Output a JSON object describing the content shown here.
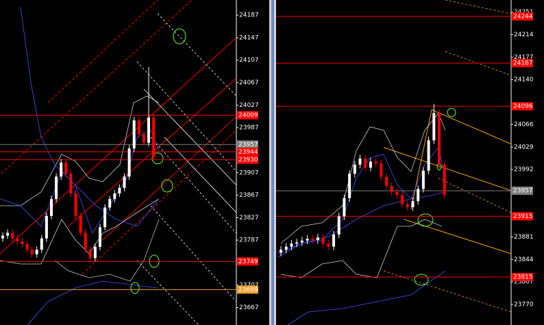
{
  "chart_data": [
    {
      "type": "candlestick",
      "ylim": [
        23636,
        24214
      ],
      "yticks": [
        24187,
        24147,
        24107,
        24067,
        24027,
        23987,
        23907,
        23867,
        23827,
        23787,
        23707,
        23667
      ],
      "up_color": "#ffffff",
      "down_color": "#ff0000",
      "open": [
        23790,
        23795,
        23800,
        23790,
        23785,
        23780,
        23770,
        23762,
        23770,
        23790,
        23830,
        23860,
        23900,
        23925,
        23905,
        23870,
        23830,
        23800,
        23770,
        23755,
        23775,
        23810,
        23845,
        23860,
        23870,
        23880,
        23900,
        23950,
        24000,
        23975,
        23960,
        24005
      ],
      "high": [
        23801,
        23806,
        23806,
        23796,
        23791,
        23786,
        23776,
        23776,
        23796,
        23836,
        23866,
        23906,
        23931,
        23931,
        23911,
        23876,
        23836,
        23806,
        23776,
        23781,
        23816,
        23851,
        23866,
        23876,
        23886,
        23906,
        23956,
        24006,
        24006,
        23981,
        24095,
        24011
      ],
      "low": [
        23784,
        23789,
        23784,
        23779,
        23774,
        23764,
        23756,
        23756,
        23764,
        23784,
        23824,
        23854,
        23894,
        23899,
        23864,
        23824,
        23794,
        23764,
        23749,
        23749,
        23769,
        23804,
        23839,
        23854,
        23864,
        23874,
        23894,
        23944,
        23969,
        23954,
        23954,
        23929
      ],
      "close": [
        23795,
        23800,
        23790,
        23785,
        23780,
        23770,
        23762,
        23770,
        23790,
        23830,
        23860,
        23900,
        23925,
        23905,
        23870,
        23830,
        23800,
        23770,
        23755,
        23775,
        23810,
        23845,
        23860,
        23870,
        23880,
        23900,
        23950,
        24000,
        23975,
        23960,
        24005,
        23935
      ],
      "levels": [
        {
          "value": 24009,
          "color": "#ff0000"
        },
        {
          "value": 23957,
          "color": "#808080"
        },
        {
          "value": 23944,
          "color": "#ff0000"
        },
        {
          "value": 23930,
          "color": "#ff0000"
        },
        {
          "value": 23749,
          "color": "#ff0000"
        },
        {
          "value": 23699,
          "color": "#f0a030"
        }
      ]
    },
    {
      "type": "candlestick",
      "ylim": [
        23736,
        24271
      ],
      "yticks": [
        24251,
        24214,
        24177,
        24140,
        24066,
        24029,
        23992,
        23881,
        23844,
        23807,
        23770
      ],
      "up_color": "#ffffff",
      "down_color": "#ff0000",
      "open": [
        23855,
        23860,
        23865,
        23870,
        23872,
        23875,
        23878,
        23876,
        23880,
        23870,
        23865,
        23885,
        23915,
        23945,
        23985,
        24000,
        24010,
        23995,
        24005,
        24002,
        23980,
        23965,
        23955,
        23950,
        23935,
        23930,
        23940,
        23960,
        23990,
        24040,
        24085,
        24000
      ],
      "high": [
        23866,
        23871,
        23876,
        23878,
        23881,
        23884,
        23884,
        23886,
        23886,
        23876,
        23891,
        23921,
        23951,
        23991,
        24006,
        24016,
        24016,
        24011,
        24011,
        24008,
        23986,
        23971,
        23961,
        23956,
        23941,
        23946,
        23966,
        23996,
        24046,
        24100,
        24091,
        24006
      ],
      "low": [
        23849,
        23854,
        23859,
        23864,
        23866,
        23869,
        23870,
        23870,
        23864,
        23859,
        23859,
        23879,
        23909,
        23939,
        23979,
        23994,
        23989,
        23989,
        23996,
        23974,
        23959,
        23949,
        23944,
        23929,
        23924,
        23924,
        23934,
        23954,
        23984,
        24034,
        23994,
        23944
      ],
      "close": [
        23860,
        23865,
        23870,
        23872,
        23875,
        23878,
        23876,
        23880,
        23870,
        23865,
        23885,
        23915,
        23945,
        23985,
        24000,
        24010,
        23995,
        24005,
        24002,
        23980,
        23965,
        23955,
        23950,
        23935,
        23930,
        23940,
        23960,
        23990,
        24040,
        24085,
        24000,
        23950
      ],
      "levels": [
        {
          "value": 24244,
          "color": "#ff0000"
        },
        {
          "value": 24167,
          "color": "#ff0000"
        },
        {
          "value": 24096,
          "color": "#ff0000"
        },
        {
          "value": 23957,
          "color": "#808080"
        },
        {
          "value": 23915,
          "color": "#ff0000"
        },
        {
          "value": 23815,
          "color": "#ff0000"
        }
      ]
    }
  ]
}
